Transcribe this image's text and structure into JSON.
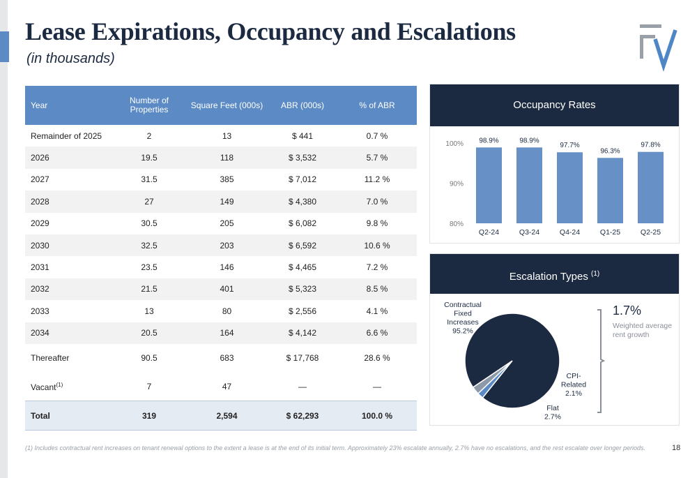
{
  "header": {
    "title": "Lease Expirations, Occupancy and Escalations",
    "subtitle": "(in thousands)"
  },
  "table": {
    "headers": {
      "year": "Year",
      "properties": "Number of Properties",
      "sqft": "Square Feet (000s)",
      "abr": "ABR (000s)",
      "pct": "% of ABR"
    },
    "rows": [
      {
        "year": "Remainder of 2025",
        "properties": "2",
        "sqft": "13",
        "abr": "$ 441",
        "pct": "0.7 %"
      },
      {
        "year": "2026",
        "properties": "19.5",
        "sqft": "118",
        "abr": "$ 3,532",
        "pct": "5.7 %"
      },
      {
        "year": "2027",
        "properties": "31.5",
        "sqft": "385",
        "abr": "$ 7,012",
        "pct": "11.2 %"
      },
      {
        "year": "2028",
        "properties": "27",
        "sqft": "149",
        "abr": "$ 4,380",
        "pct": "7.0 %"
      },
      {
        "year": "2029",
        "properties": "30.5",
        "sqft": "205",
        "abr": "$ 6,082",
        "pct": "9.8 %"
      },
      {
        "year": "2030",
        "properties": "32.5",
        "sqft": "203",
        "abr": "$ 6,592",
        "pct": "10.6 %"
      },
      {
        "year": "2031",
        "properties": "23.5",
        "sqft": "146",
        "abr": "$ 4,465",
        "pct": "7.2 %"
      },
      {
        "year": "2032",
        "properties": "21.5",
        "sqft": "401",
        "abr": "$ 5,323",
        "pct": "8.5 %"
      },
      {
        "year": "2033",
        "properties": "13",
        "sqft": "80",
        "abr": "$ 2,556",
        "pct": "4.1 %"
      },
      {
        "year": "2034",
        "properties": "20.5",
        "sqft": "164",
        "abr": "$ 4,142",
        "pct": "6.6 %"
      },
      {
        "year": "Thereafter",
        "properties": "90.5",
        "sqft": "683",
        "abr": "$ 17,768",
        "pct": "28.6 %"
      }
    ],
    "vacant": {
      "label": "Vacant",
      "sup": "(1)",
      "properties": "7",
      "sqft": "47",
      "abr": "—",
      "pct": "—"
    },
    "total": {
      "label": "Total",
      "properties": "319",
      "sqft": "2,594",
      "abr": "$ 62,293",
      "pct": "100.0 %"
    }
  },
  "occupancy": {
    "title": "Occupancy Rates",
    "chart_data": {
      "type": "bar",
      "categories": [
        "Q2-24",
        "Q3-24",
        "Q4-24",
        "Q1-25",
        "Q2-25"
      ],
      "values": [
        98.9,
        98.9,
        97.7,
        96.3,
        97.8
      ],
      "labels": [
        "98.9%",
        "98.9%",
        "97.7%",
        "96.3%",
        "97.8%"
      ],
      "yticks": [
        "80%",
        "90%",
        "100%"
      ],
      "ylim": [
        80,
        100
      ],
      "bar_color": "#6690c6"
    }
  },
  "escalation": {
    "title": "Escalation Types",
    "title_sup": "(1)",
    "chart_data": {
      "type": "pie",
      "slices": [
        {
          "label_lines": [
            "Contractual",
            "Fixed",
            "Increases",
            "95.2%"
          ],
          "value": 95.2,
          "color": "#1b2a41"
        },
        {
          "label_lines": [
            "Flat",
            "2.7%"
          ],
          "value": 2.7,
          "color": "#8e99a8"
        },
        {
          "label_lines": [
            "CPI-",
            "Related",
            "2.1%"
          ],
          "value": 2.1,
          "color": "#5b8ac4"
        }
      ]
    },
    "weighted_value": "1.7%",
    "weighted_label": "Weighted average rent growth"
  },
  "footnote": "(1)   Includes contractual rent increases on tenant renewal options to the extent a lease is at the end of its initial term. Approximately 23% escalate annually, 2.7% have no escalations, and the rest escalate over longer periods.",
  "page_number": "18",
  "colors": {
    "navy": "#1b2a41",
    "accent_blue": "#5b8ac4",
    "logo_gray": "#9aa0a8",
    "logo_blue": "#4f86c6"
  }
}
